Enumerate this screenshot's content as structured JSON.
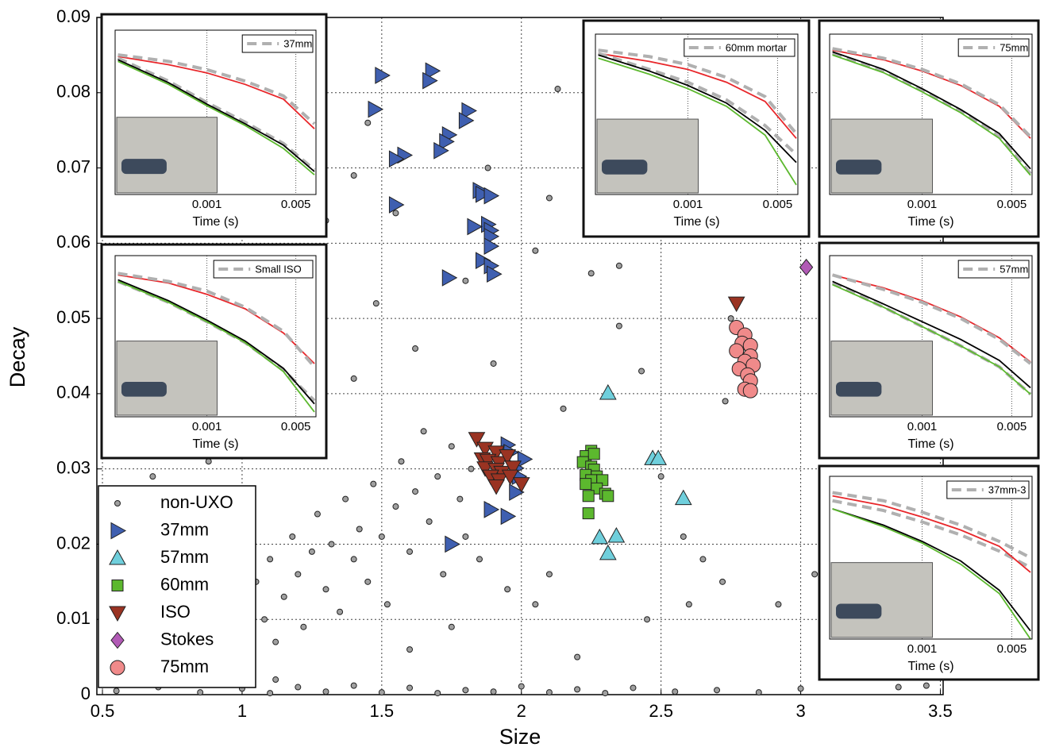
{
  "chart_data": [
    {
      "type": "scatter",
      "xlabel": "Size",
      "ylabel": "Decay",
      "xlim": [
        0.48,
        3.51
      ],
      "ylim": [
        0,
        0.09
      ],
      "xticks": [
        0.5,
        1,
        1.5,
        2,
        2.5,
        3,
        3.5
      ],
      "yticks": [
        0,
        0.01,
        0.02,
        0.03,
        0.04,
        0.05,
        0.06,
        0.07,
        0.08,
        0.09
      ],
      "grid": true,
      "legend": "lower left",
      "series": [
        {
          "name": "non-UXO",
          "color": "#a0a0a0",
          "marker": "circle",
          "x": [
            0.55,
            0.7,
            0.85,
            1.0,
            1.1,
            1.2,
            1.3,
            1.4,
            1.5,
            1.6,
            1.7,
            1.8,
            1.9,
            2.0,
            2.1,
            2.2,
            2.3,
            2.4,
            2.55,
            2.7,
            2.85,
            3.0,
            3.35,
            3.45,
            0.95,
            1.0,
            1.02,
            1.05,
            1.08,
            1.1,
            1.12,
            1.15,
            1.18,
            1.2,
            1.22,
            1.25,
            1.27,
            1.3,
            1.32,
            1.35,
            1.37,
            1.4,
            1.42,
            1.45,
            1.47,
            1.5,
            1.52,
            1.55,
            1.57,
            1.6,
            1.62,
            1.65,
            1.67,
            1.7,
            1.72,
            1.75,
            1.78,
            1.8,
            1.82,
            1.85,
            1.88,
            0.98,
            1.12,
            1.6,
            1.75,
            2.05,
            2.1,
            1.95,
            0.68,
            0.88,
            1.13,
            1.4,
            1.48,
            1.62,
            1.8,
            1.9,
            2.05,
            2.15,
            2.25,
            2.1,
            1.88,
            2.13,
            1.45,
            1.4,
            1.23,
            2.35,
            2.43,
            2.58,
            2.65,
            2.72,
            2.92,
            3.05,
            2.5,
            2.75,
            2.73,
            2.45,
            2.2,
            2.6,
            1.3,
            1.55,
            2.35
          ],
          "values": [
            0.0005,
            0.001,
            0.0003,
            0.0008,
            0.0002,
            0.001,
            0.0004,
            0.0012,
            0.0003,
            0.0009,
            0.0002,
            0.0006,
            0.0004,
            0.0011,
            0.0003,
            0.0007,
            0.0002,
            0.0009,
            0.0004,
            0.0006,
            0.0003,
            0.0008,
            0.001,
            0.0012,
            0.008,
            0.012,
            0.005,
            0.015,
            0.01,
            0.018,
            0.007,
            0.013,
            0.021,
            0.016,
            0.009,
            0.019,
            0.024,
            0.014,
            0.02,
            0.011,
            0.026,
            0.018,
            0.022,
            0.015,
            0.028,
            0.021,
            0.012,
            0.025,
            0.031,
            0.019,
            0.027,
            0.035,
            0.023,
            0.029,
            0.016,
            0.033,
            0.026,
            0.021,
            0.03,
            0.018,
            0.025,
            0.003,
            0.002,
            0.006,
            0.009,
            0.012,
            0.016,
            0.014,
            0.029,
            0.031,
            0.033,
            0.042,
            0.052,
            0.046,
            0.055,
            0.044,
            0.059,
            0.038,
            0.056,
            0.066,
            0.07,
            0.0805,
            0.076,
            0.069,
            0.056,
            0.057,
            0.043,
            0.021,
            0.018,
            0.015,
            0.012,
            0.016,
            0.029,
            0.05,
            0.039,
            0.01,
            0.005,
            0.012,
            0.063,
            0.064,
            0.049
          ]
        },
        {
          "name": "37mm",
          "color": "#3f5fb0",
          "marker": "triangle-right",
          "x": [
            1.5,
            1.68,
            1.67,
            1.475,
            1.81,
            1.8,
            1.74,
            1.73,
            1.71,
            1.58,
            1.55,
            1.55,
            1.85,
            1.86,
            1.89,
            1.88,
            1.89,
            1.83,
            1.89,
            1.89,
            1.86,
            1.89,
            1.9,
            1.74,
            1.95,
            2.01,
            1.96,
            1.98,
            1.99,
            1.98,
            1.89,
            1.95,
            1.75
          ],
          "values": [
            0.0823,
            0.0829,
            0.0816,
            0.0778,
            0.0776,
            0.0763,
            0.0744,
            0.0735,
            0.0723,
            0.0717,
            0.0712,
            0.0651,
            0.067,
            0.0665,
            0.0663,
            0.0625,
            0.0617,
            0.0622,
            0.0609,
            0.0596,
            0.0577,
            0.057,
            0.0559,
            0.0554,
            0.0332,
            0.0313,
            0.0322,
            0.0301,
            0.029,
            0.0269,
            0.0246,
            0.0237,
            0.02
          ]
        },
        {
          "name": "57mm",
          "color": "#6fcfdc",
          "marker": "triangle-up",
          "x": [
            2.31,
            2.47,
            2.49,
            2.58,
            2.28,
            2.34,
            2.31
          ],
          "values": [
            0.0401,
            0.0314,
            0.0314,
            0.0261,
            0.0209,
            0.0211,
            0.0188
          ]
        },
        {
          "name": "60mm",
          "color": "#5cb82e",
          "marker": "square",
          "x": [
            2.25,
            2.23,
            2.26,
            2.22,
            2.25,
            2.26,
            2.23,
            2.27,
            2.25,
            2.29,
            2.23,
            2.27,
            2.3,
            2.24,
            2.31,
            2.24
          ],
          "values": [
            0.0324,
            0.0317,
            0.032,
            0.0309,
            0.0303,
            0.0299,
            0.0292,
            0.029,
            0.0285,
            0.0285,
            0.028,
            0.0274,
            0.0267,
            0.0264,
            0.0264,
            0.0241
          ]
        },
        {
          "name": "ISO",
          "color": "#9a3322",
          "marker": "triangle-down",
          "x": [
            2.77,
            1.84,
            1.87,
            1.91,
            1.86,
            1.88,
            1.92,
            1.95,
            1.87,
            1.91,
            1.93,
            1.97,
            1.89,
            1.92,
            1.96,
            1.91,
            2.0
          ],
          "values": [
            0.052,
            0.034,
            0.0327,
            0.0322,
            0.0313,
            0.0311,
            0.0308,
            0.0317,
            0.0301,
            0.0299,
            0.0295,
            0.0302,
            0.029,
            0.0285,
            0.029,
            0.0277,
            0.028
          ]
        },
        {
          "name": "Stokes",
          "color": "#b15ab5",
          "marker": "diamond",
          "x": [
            3.02
          ],
          "values": [
            0.0568
          ]
        },
        {
          "name": "75mm",
          "color": "#f08a8a",
          "marker": "big-circle",
          "x": [
            2.77,
            2.8,
            2.79,
            2.82,
            2.77,
            2.82,
            2.8,
            2.83,
            2.78,
            2.81,
            2.82,
            2.8,
            2.82
          ],
          "values": [
            0.0488,
            0.0478,
            0.0467,
            0.0464,
            0.0457,
            0.045,
            0.0443,
            0.0438,
            0.0433,
            0.0425,
            0.0417,
            0.0406,
            0.0404
          ]
        }
      ]
    },
    {
      "type": "line",
      "xlog": true,
      "xlabel": "Time (s)",
      "xlim": [
        0.00019,
        0.0072
      ],
      "xticks": [
        0.001,
        0.005
      ],
      "ylim": [
        0,
        1
      ],
      "grid": true,
      "x": [
        0.0002,
        0.0005,
        0.001,
        0.002,
        0.004,
        0.007
      ],
      "series": [
        {
          "color": "#e8262a",
          "values": [
            0.84,
            0.79,
            0.74,
            0.67,
            0.58,
            0.4
          ]
        },
        {
          "name": "37mm",
          "color": "#b0b0b0",
          "dash": true,
          "values": [
            0.85,
            0.81,
            0.76,
            0.69,
            0.6,
            0.43
          ]
        },
        {
          "color": "#b0b0b0",
          "dash": true,
          "values": [
            0.83,
            0.69,
            0.56,
            0.44,
            0.31,
            0.15
          ]
        },
        {
          "color": "#000000",
          "values": [
            0.82,
            0.68,
            0.55,
            0.43,
            0.3,
            0.14
          ]
        },
        {
          "color": "#5cb82e",
          "values": [
            0.81,
            0.67,
            0.54,
            0.42,
            0.28,
            0.12
          ]
        }
      ]
    },
    {
      "type": "line",
      "xlog": true,
      "xlabel": "Time (s)",
      "xlim": [
        0.00019,
        0.0072
      ],
      "xticks": [
        0.001,
        0.005
      ],
      "ylim": [
        0,
        1
      ],
      "grid": true,
      "x": [
        0.0002,
        0.0005,
        0.001,
        0.002,
        0.004,
        0.007
      ],
      "series": [
        {
          "color": "#e8262a",
          "values": [
            0.88,
            0.83,
            0.78,
            0.7,
            0.58,
            0.35
          ]
        },
        {
          "name": "60mm mortar",
          "color": "#b0b0b0",
          "dash": true,
          "values": [
            0.9,
            0.86,
            0.81,
            0.73,
            0.61,
            0.38
          ]
        },
        {
          "color": "#b0b0b0",
          "dash": true,
          "values": [
            0.88,
            0.78,
            0.7,
            0.59,
            0.43,
            0.25
          ]
        },
        {
          "color": "#000000",
          "values": [
            0.87,
            0.77,
            0.68,
            0.57,
            0.4,
            0.2
          ]
        },
        {
          "color": "#5cb82e",
          "values": [
            0.85,
            0.75,
            0.66,
            0.55,
            0.37,
            0.06
          ]
        }
      ]
    },
    {
      "type": "line",
      "xlog": true,
      "xlabel": "Time (s)",
      "xlim": [
        0.00019,
        0.0072
      ],
      "xticks": [
        0.001,
        0.005
      ],
      "ylim": [
        0,
        1
      ],
      "grid": true,
      "x": [
        0.0002,
        0.0005,
        0.001,
        0.002,
        0.004,
        0.007
      ],
      "series": [
        {
          "color": "#e8262a",
          "values": [
            0.9,
            0.84,
            0.77,
            0.68,
            0.55,
            0.35
          ]
        },
        {
          "name": "75mm",
          "color": "#b0b0b0",
          "dash": true,
          "values": [
            0.91,
            0.85,
            0.78,
            0.69,
            0.56,
            0.36
          ]
        },
        {
          "color": "#b0b0b0",
          "dash": true,
          "values": [
            0.88,
            0.77,
            0.65,
            0.52,
            0.36,
            0.13
          ]
        },
        {
          "color": "#000000",
          "values": [
            0.89,
            0.78,
            0.66,
            0.53,
            0.38,
            0.16
          ]
        },
        {
          "color": "#5cb82e",
          "values": [
            0.87,
            0.76,
            0.64,
            0.51,
            0.35,
            0.12
          ]
        }
      ]
    },
    {
      "type": "line",
      "xlog": true,
      "xlabel": "Time (s)",
      "xlim": [
        0.00019,
        0.0072
      ],
      "xticks": [
        0.001,
        0.005
      ],
      "ylim": [
        0,
        1
      ],
      "grid": true,
      "x": [
        0.0002,
        0.0005,
        0.001,
        0.002,
        0.004,
        0.007
      ],
      "series": [
        {
          "color": "#e8262a",
          "values": [
            0.88,
            0.83,
            0.76,
            0.67,
            0.52,
            0.33
          ]
        },
        {
          "name": "Small ISO",
          "color": "#b0b0b0",
          "dash": true,
          "values": [
            0.89,
            0.84,
            0.78,
            0.68,
            0.53,
            0.31
          ]
        },
        {
          "color": "#b0b0b0",
          "dash": true,
          "values": [
            0.84,
            0.71,
            0.59,
            0.46,
            0.29,
            0.1
          ]
        },
        {
          "color": "#000000",
          "values": [
            0.85,
            0.72,
            0.6,
            0.47,
            0.3,
            0.08
          ]
        },
        {
          "color": "#5cb82e",
          "values": [
            0.84,
            0.71,
            0.59,
            0.46,
            0.28,
            0.03
          ]
        }
      ]
    },
    {
      "type": "line",
      "xlog": true,
      "xlabel": "Time (s)",
      "xlim": [
        0.00019,
        0.0072
      ],
      "xticks": [
        0.001,
        0.005
      ],
      "ylim": [
        0,
        1
      ],
      "grid": true,
      "x": [
        0.0002,
        0.0005,
        0.001,
        0.002,
        0.004,
        0.007
      ],
      "series": [
        {
          "color": "#e8262a",
          "values": [
            0.88,
            0.8,
            0.72,
            0.62,
            0.49,
            0.34
          ]
        },
        {
          "name": "57mm",
          "color": "#b0b0b0",
          "dash": true,
          "values": [
            0.88,
            0.79,
            0.71,
            0.61,
            0.48,
            0.33
          ]
        },
        {
          "color": "#b0b0b0",
          "dash": true,
          "values": [
            0.83,
            0.68,
            0.56,
            0.44,
            0.31,
            0.14
          ]
        },
        {
          "color": "#000000",
          "values": [
            0.84,
            0.7,
            0.59,
            0.48,
            0.35,
            0.18
          ]
        },
        {
          "color": "#5cb82e",
          "values": [
            0.82,
            0.68,
            0.56,
            0.44,
            0.31,
            0.14
          ]
        }
      ]
    },
    {
      "type": "line",
      "xlog": true,
      "xlabel": "Time (s)",
      "xlim": [
        0.00019,
        0.0072
      ],
      "xticks": [
        0.001,
        0.005
      ],
      "ylim": [
        0,
        1
      ],
      "grid": true,
      "x": [
        0.0002,
        0.0005,
        0.001,
        0.002,
        0.004,
        0.007
      ],
      "series": [
        {
          "color": "#b0b0b0",
          "dash": true,
          "values": [
            0.9,
            0.85,
            0.78,
            0.7,
            0.6,
            0.5
          ]
        },
        {
          "name": "37mm-3",
          "color": "#b0b0b0",
          "dash": true,
          "values": [
            0.85,
            0.79,
            0.72,
            0.64,
            0.54,
            0.44
          ]
        },
        {
          "color": "#e8262a",
          "values": [
            0.88,
            0.82,
            0.75,
            0.67,
            0.57,
            0.41
          ]
        },
        {
          "color": "#000000",
          "values": [
            0.8,
            0.7,
            0.6,
            0.48,
            0.3,
            0.05
          ]
        },
        {
          "color": "#5cb82e",
          "values": [
            0.8,
            0.69,
            0.59,
            0.46,
            0.28,
            0.0
          ]
        }
      ]
    }
  ]
}
